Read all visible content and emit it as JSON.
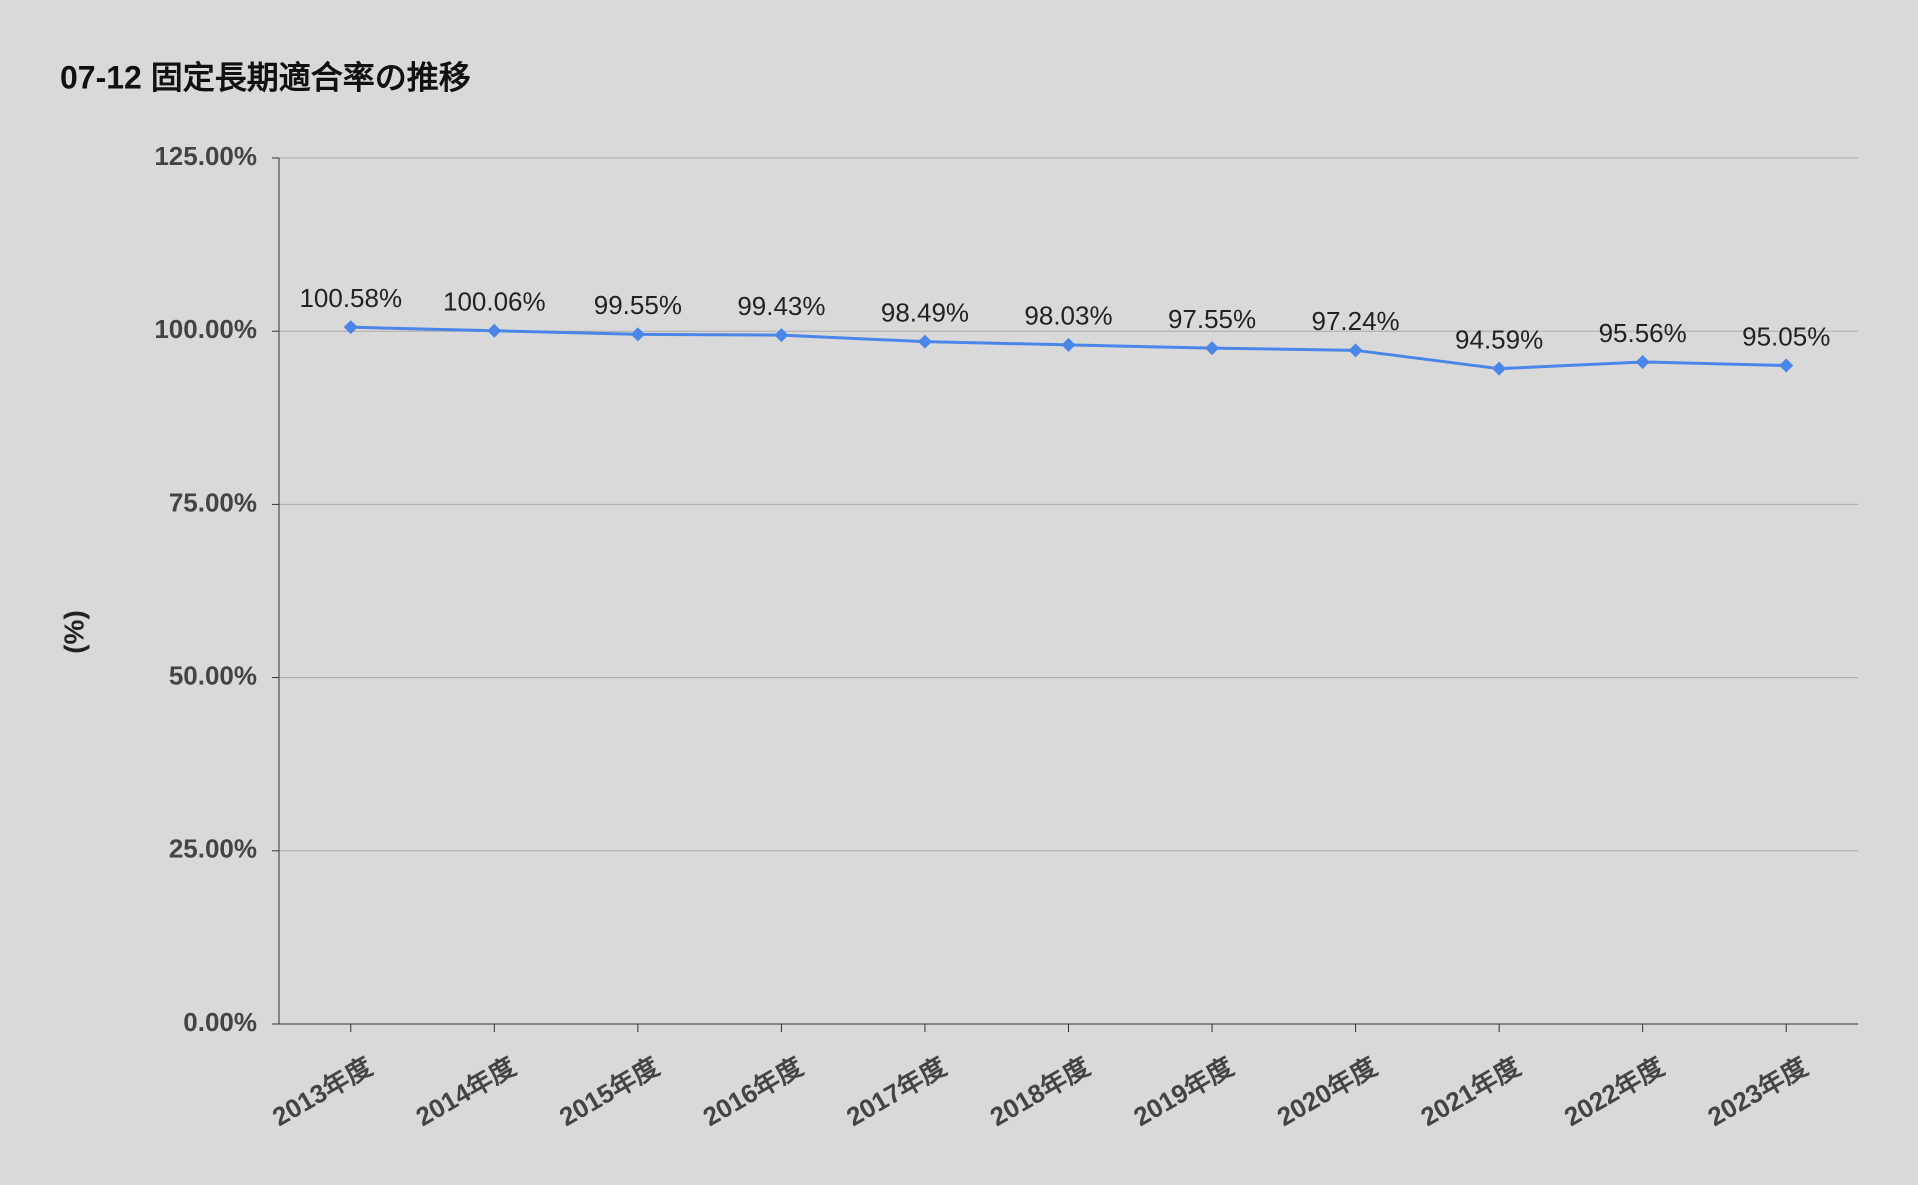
{
  "chart_data": {
    "type": "line",
    "title": "07-12 固定長期適合率の推移",
    "y_label": "(%)",
    "categories": [
      "2013年度",
      "2014年度",
      "2015年度",
      "2016年度",
      "2017年度",
      "2018年度",
      "2019年度",
      "2020年度",
      "2021年度",
      "2022年度",
      "2023年度"
    ],
    "series": [
      {
        "color": "#4a86e8",
        "values": [
          100.58,
          100.06,
          99.55,
          99.43,
          98.49,
          98.03,
          97.55,
          97.24,
          94.59,
          95.56,
          95.05
        ],
        "value_labels": [
          "100.58%",
          "100.06%",
          "99.55%",
          "99.43%",
          "98.49%",
          "98.03%",
          "97.55%",
          "97.24%",
          "94.59%",
          "95.56%",
          "95.05%"
        ]
      }
    ],
    "ylim": [
      0,
      125
    ],
    "yticks": [
      {
        "value": 0,
        "label": "0.00%"
      },
      {
        "value": 25,
        "label": "25.00%"
      },
      {
        "value": 50,
        "label": "50.00%"
      },
      {
        "value": 75,
        "label": "75.00%"
      },
      {
        "value": 100,
        "label": "100.00%"
      },
      {
        "value": 125,
        "label": "125.00%"
      }
    ],
    "grid": true
  }
}
